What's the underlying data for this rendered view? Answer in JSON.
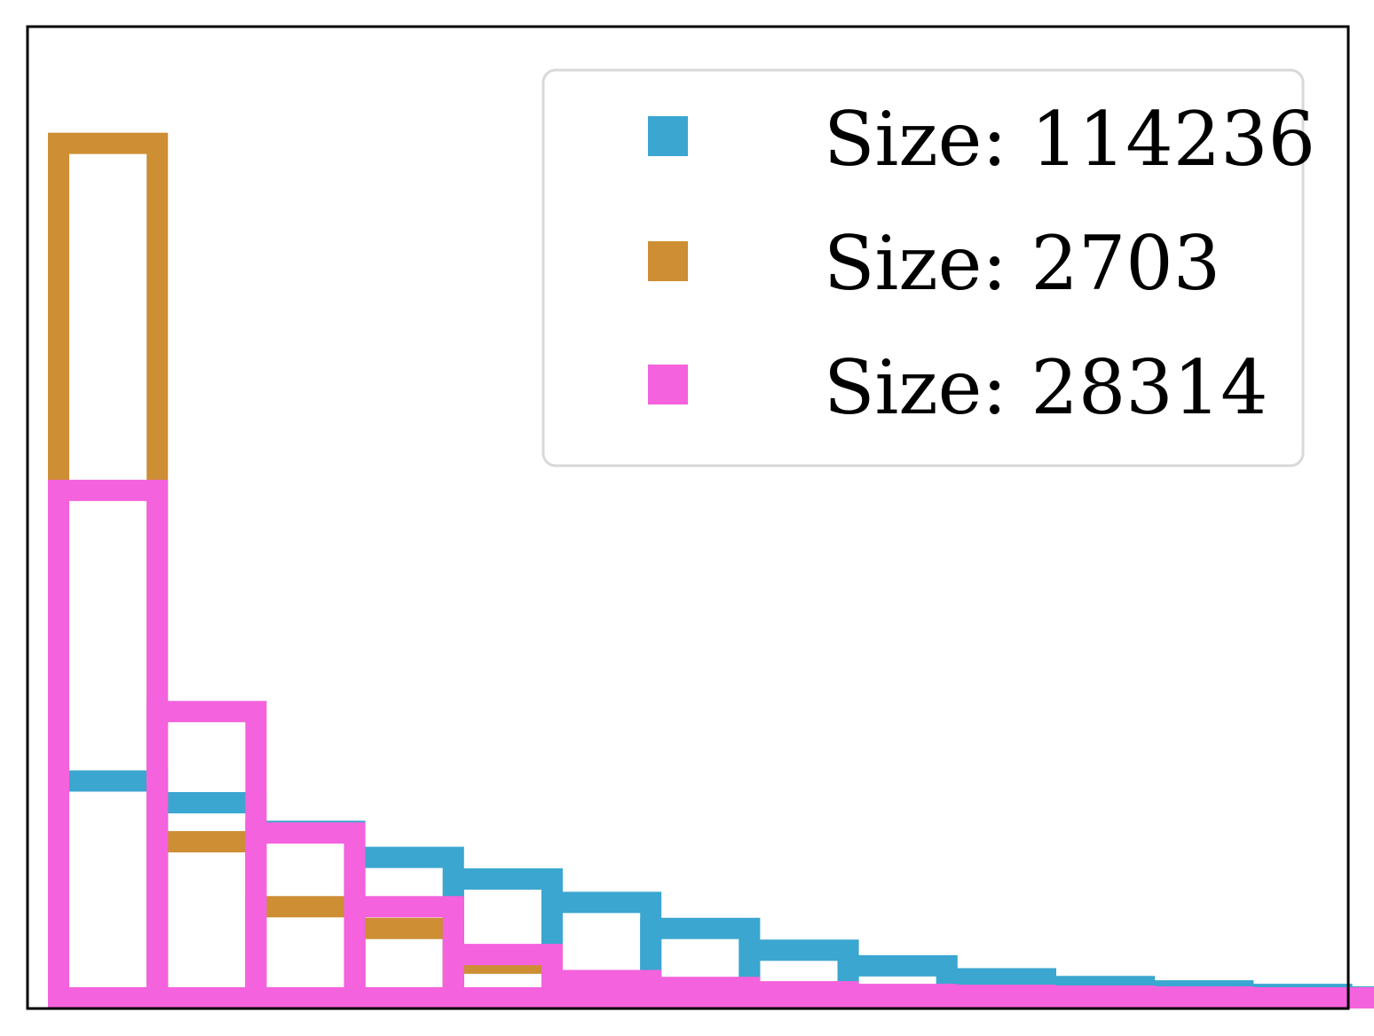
{
  "chart_data": {
    "type": "bar",
    "subtype": "step-histogram",
    "title": "",
    "xlabel": "",
    "ylabel": "",
    "axes_visible": false,
    "grid": false,
    "legend_position": "top-right",
    "bins": 14,
    "xlim": [
      0,
      14
    ],
    "ylim": [
      0,
      1.0
    ],
    "series": [
      {
        "name": "Size: 114236",
        "color": "#3BA6D0",
        "values": [
          0.25,
          0.225,
          0.192,
          0.162,
          0.137,
          0.11,
          0.08,
          0.055,
          0.037,
          0.022,
          0.013,
          0.008,
          0.004,
          0.001
        ]
      },
      {
        "name": "Size: 2703",
        "color": "#CD8E34",
        "values": [
          0.985,
          0.18,
          0.105,
          0.08,
          0.04,
          0.015,
          0.006,
          0.003,
          0.001,
          0.0,
          0.0,
          0.0,
          0.0,
          0.0
        ]
      },
      {
        "name": "Size: 28314",
        "color": "#F462DD",
        "values": [
          0.585,
          0.33,
          0.19,
          0.105,
          0.05,
          0.02,
          0.012,
          0.007,
          0.004,
          0.003,
          0.002,
          0.001,
          0.0,
          0.0
        ]
      }
    ]
  }
}
